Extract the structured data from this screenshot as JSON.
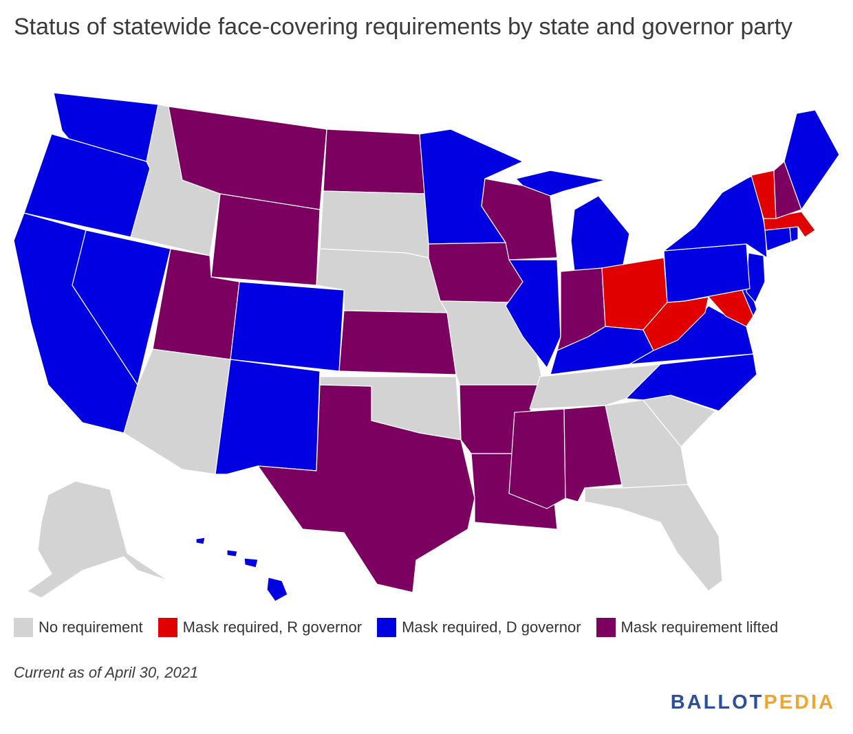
{
  "title": "Status of statewide face-covering requirements by state and governor party",
  "legend": [
    {
      "label": "No requirement",
      "color": "#d3d3d3"
    },
    {
      "label": "Mask required, R governor",
      "color": "#e00000"
    },
    {
      "label": "Mask required, D governor",
      "color": "#0000e0"
    },
    {
      "label": "Mask requirement lifted",
      "color": "#7b0060"
    }
  ],
  "note": "Current as of April 30, 2021",
  "brand": {
    "part1": "BALLOT",
    "part2": "PEDIA"
  },
  "states": {
    "WA": "d",
    "OR": "d",
    "CA": "d",
    "NV": "d",
    "ID": "none",
    "MT": "lifted",
    "WY": "lifted",
    "UT": "lifted",
    "AZ": "none",
    "CO": "d",
    "NM": "d",
    "ND": "lifted",
    "SD": "none",
    "NE": "none",
    "KS": "lifted",
    "OK": "none",
    "TX": "lifted",
    "MN": "d",
    "IA": "lifted",
    "MO": "none",
    "AR": "lifted",
    "LA": "lifted",
    "WI": "lifted",
    "IL": "d",
    "MI": "d",
    "IN": "lifted",
    "OH": "r",
    "KY": "d",
    "TN": "none",
    "MS": "lifted",
    "AL": "lifted",
    "GA": "none",
    "FL": "none",
    "SC": "none",
    "NC": "d",
    "VA": "d",
    "WV": "r",
    "MD": "r",
    "DE": "d",
    "NJ": "d",
    "PA": "d",
    "NY": "d",
    "CT": "d",
    "RI": "d",
    "MA": "r",
    "VT": "r",
    "NH": "lifted",
    "ME": "d",
    "AK": "none",
    "HI": "d"
  },
  "status_colors": {
    "none": "#d3d3d3",
    "r": "#e00000",
    "d": "#0000e0",
    "lifted": "#7b0060"
  }
}
